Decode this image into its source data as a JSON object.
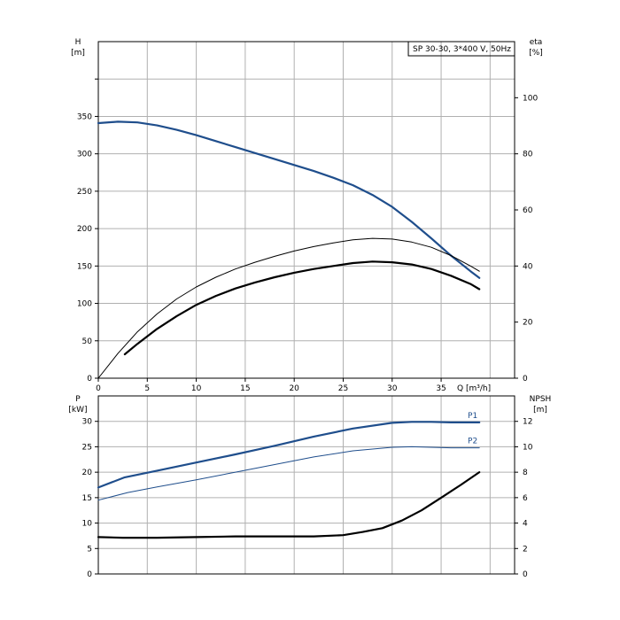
{
  "chart_data": [
    {
      "type": "line",
      "title": "SP 30-30, 3*400 V, 50Hz",
      "xlabel": "Q [m³/h]",
      "x_unit": "Q [m³/h]",
      "ylabel_left": "H",
      "ylabel_left_unit": "[m]",
      "ylabel_right": "eta",
      "ylabel_right_unit": "[%]",
      "xlim": [
        0,
        42.5
      ],
      "ylim_left": [
        0,
        450
      ],
      "ylim_right": [
        0,
        120
      ],
      "x_ticks": [
        0,
        5,
        10,
        15,
        20,
        25,
        30,
        35
      ],
      "y_ticks_left": [
        0,
        50,
        100,
        150,
        200,
        250,
        300,
        350
      ],
      "y_ticks_right": [
        0,
        20,
        40,
        60,
        80,
        100
      ],
      "grid": true,
      "series": [
        {
          "axis": "left",
          "color": "#1f4e8c",
          "points": [
            [
              0,
              341
            ],
            [
              2,
              343
            ],
            [
              4,
              342
            ],
            [
              6,
              338
            ],
            [
              8,
              332
            ],
            [
              10,
              325
            ],
            [
              12,
              317
            ],
            [
              14,
              309
            ],
            [
              16,
              301
            ],
            [
              18,
              293
            ],
            [
              20,
              285
            ],
            [
              22,
              277
            ],
            [
              24,
              268
            ],
            [
              26,
              258
            ],
            [
              28,
              245
            ],
            [
              30,
              229
            ],
            [
              32,
              209
            ],
            [
              34,
              187
            ],
            [
              36,
              164
            ],
            [
              38,
              143
            ],
            [
              38.9,
              134
            ]
          ]
        },
        {
          "axis": "left",
          "color": "#000000",
          "points": [
            [
              0,
              0
            ],
            [
              2,
              33
            ],
            [
              4,
              62
            ],
            [
              6,
              86
            ],
            [
              8,
              106
            ],
            [
              10,
              122
            ],
            [
              12,
              135
            ],
            [
              14,
              146
            ],
            [
              16,
              155
            ],
            [
              18,
              163
            ],
            [
              20,
              170
            ],
            [
              22,
              176
            ],
            [
              24,
              181
            ],
            [
              26,
              185
            ],
            [
              28,
              187
            ],
            [
              30,
              186
            ],
            [
              32,
              182
            ],
            [
              34,
              175
            ],
            [
              36,
              164
            ],
            [
              38,
              150
            ],
            [
              38.9,
              143
            ]
          ]
        },
        {
          "axis": "left",
          "color": "#000000",
          "points": [
            [
              2.7,
              32
            ],
            [
              4,
              46
            ],
            [
              6,
              66
            ],
            [
              8,
              83
            ],
            [
              10,
              98
            ],
            [
              12,
              110
            ],
            [
              14,
              120
            ],
            [
              16,
              128
            ],
            [
              18,
              135
            ],
            [
              20,
              141
            ],
            [
              22,
              146
            ],
            [
              24,
              150
            ],
            [
              26,
              154
            ],
            [
              28,
              156
            ],
            [
              30,
              155
            ],
            [
              32,
              152
            ],
            [
              34,
              146
            ],
            [
              36,
              137
            ],
            [
              38,
              126
            ],
            [
              38.9,
              119
            ]
          ]
        }
      ]
    },
    {
      "type": "line",
      "xlabel": "",
      "ylabel_left": "P",
      "ylabel_left_unit": "[kW]",
      "ylabel_right": "NPSH",
      "ylabel_right_unit": "[m]",
      "xlim": [
        0,
        42.5
      ],
      "ylim_left": [
        0,
        35
      ],
      "ylim_right": [
        0,
        14
      ],
      "x_ticks": [],
      "y_ticks_left": [
        0,
        5,
        10,
        15,
        20,
        25,
        30
      ],
      "y_ticks_right": [
        0,
        2,
        4,
        6,
        8,
        10,
        12
      ],
      "grid": true,
      "series": [
        {
          "name": "P1",
          "axis": "left",
          "color": "#1f4e8c",
          "points": [
            [
              0,
              17
            ],
            [
              2.7,
              19
            ],
            [
              6,
              20.3
            ],
            [
              10,
              21.9
            ],
            [
              14,
              23.5
            ],
            [
              18,
              25.2
            ],
            [
              22,
              27
            ],
            [
              26,
              28.6
            ],
            [
              30,
              29.7
            ],
            [
              32,
              29.9
            ],
            [
              34,
              29.9
            ],
            [
              36,
              29.8
            ],
            [
              38.9,
              29.8
            ]
          ]
        },
        {
          "name": "P2",
          "axis": "left",
          "color": "#1f4e8c",
          "points": [
            [
              0,
              14.5
            ],
            [
              3,
              16
            ],
            [
              6,
              17.1
            ],
            [
              10,
              18.5
            ],
            [
              14,
              20
            ],
            [
              18,
              21.5
            ],
            [
              22,
              23
            ],
            [
              26,
              24.2
            ],
            [
              30,
              24.9
            ],
            [
              32,
              25
            ],
            [
              34,
              24.9
            ],
            [
              36,
              24.8
            ],
            [
              38.9,
              24.8
            ]
          ]
        },
        {
          "axis": "right",
          "color": "#000000",
          "points": [
            [
              0,
              2.9
            ],
            [
              2.5,
              2.85
            ],
            [
              6,
              2.85
            ],
            [
              10,
              2.9
            ],
            [
              14,
              2.95
            ],
            [
              18,
              2.95
            ],
            [
              22,
              2.95
            ],
            [
              25,
              3.05
            ],
            [
              27,
              3.3
            ],
            [
              29,
              3.6
            ],
            [
              31,
              4.2
            ],
            [
              33,
              5
            ],
            [
              35,
              6
            ],
            [
              37,
              7
            ],
            [
              38.9,
              8
            ]
          ]
        }
      ]
    }
  ]
}
